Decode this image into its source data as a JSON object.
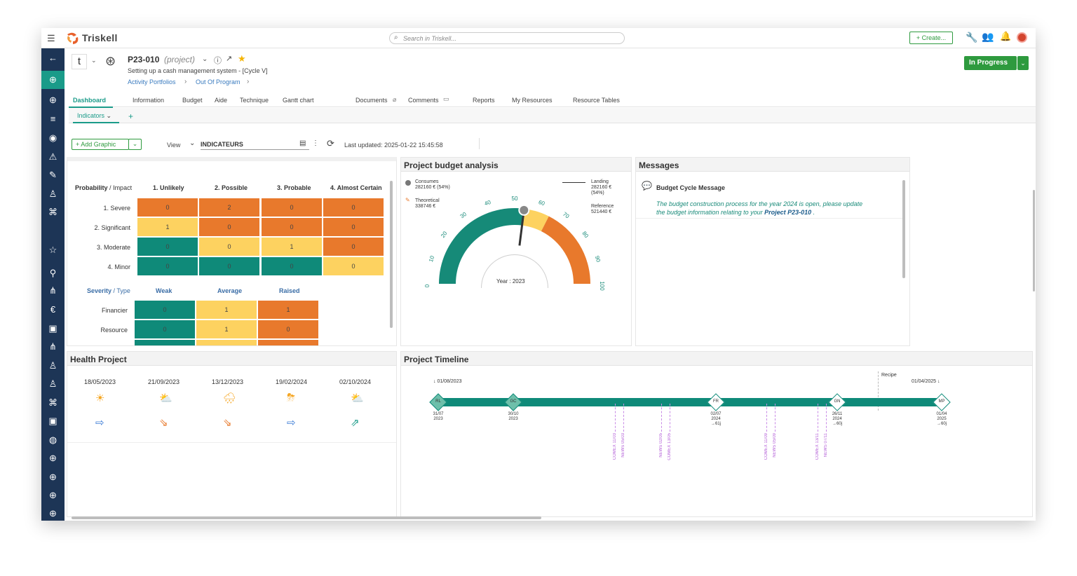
{
  "app": {
    "name": "Triskell",
    "search_placeholder": "Search in Triskell...",
    "create_label": "+ Create..."
  },
  "project": {
    "letter": "t",
    "code": "P23-010",
    "type": "(project)",
    "subtitle": "Setting up a cash management system - [Cycle V]",
    "breadcrumb": [
      "Activity Portfolios",
      "Out Of Program"
    ],
    "status": "In Progress"
  },
  "tabs": [
    "Dashboard",
    "Information",
    "Budget",
    "Aide",
    "Technique",
    "Gantt chart",
    "Documents",
    "Comments",
    "Reports",
    "My Resources",
    "Resource Tables"
  ],
  "subtab": "Indicators",
  "toolbar": {
    "add_graphic": "Add Graphic",
    "view_label": "View",
    "view_value": "INDICATEURS",
    "last_updated": "Last updated: 2025-01-22 15:45:58"
  },
  "risk": {
    "corner_a": "Probability",
    "corner_sep": "/",
    "corner_b": "Impact",
    "columns": [
      "1. Unlikely",
      "2. Possible",
      "3. Probable",
      "4. Almost Certain"
    ],
    "rows": [
      {
        "label": "1. Severe",
        "cells": [
          {
            "v": "0",
            "c": "#e8792c"
          },
          {
            "v": "2",
            "c": "#e8792c"
          },
          {
            "v": "0",
            "c": "#e8792c"
          },
          {
            "v": "0",
            "c": "#e8792c"
          }
        ]
      },
      {
        "label": "2. Significant",
        "cells": [
          {
            "v": "1",
            "c": "#fdd260"
          },
          {
            "v": "0",
            "c": "#e8792c"
          },
          {
            "v": "0",
            "c": "#e8792c"
          },
          {
            "v": "0",
            "c": "#e8792c"
          }
        ]
      },
      {
        "label": "3. Moderate",
        "cells": [
          {
            "v": "0",
            "c": "#0f8a79"
          },
          {
            "v": "0",
            "c": "#fdd260"
          },
          {
            "v": "1",
            "c": "#fdd260"
          },
          {
            "v": "0",
            "c": "#e8792c"
          }
        ]
      },
      {
        "label": "4. Minor",
        "cells": [
          {
            "v": "0",
            "c": "#0f8a79"
          },
          {
            "v": "0",
            "c": "#0f8a79"
          },
          {
            "v": "0",
            "c": "#0f8a79"
          },
          {
            "v": "0",
            "c": "#fdd260"
          }
        ]
      }
    ],
    "corner2_a": "Severity",
    "corner2_b": "Type",
    "columns2": [
      "Weak",
      "Average",
      "Raised"
    ],
    "rows2": [
      {
        "label": "Financier",
        "cells": [
          {
            "v": "0",
            "c": "#0f8a79"
          },
          {
            "v": "1",
            "c": "#fdd260"
          },
          {
            "v": "1",
            "c": "#e8792c"
          }
        ]
      },
      {
        "label": "Resource",
        "cells": [
          {
            "v": "0",
            "c": "#0f8a79"
          },
          {
            "v": "1",
            "c": "#fdd260"
          },
          {
            "v": "0",
            "c": "#e8792c"
          }
        ]
      }
    ]
  },
  "budget": {
    "title": "Project budget analysis",
    "consumes_label": "Consumes",
    "consumes_value": "282160 € (54%)",
    "theoretical_label": "Theoretical",
    "theoretical_value": "338746 €",
    "landing_label": "Landing",
    "landing_value": "282160 €",
    "landing_pct": "(54%)",
    "reference_label": "Reference",
    "reference_value": "521440 €",
    "year_label": "Year : 2023",
    "ticks": [
      "0",
      "10",
      "20",
      "30",
      "40",
      "50",
      "60",
      "70",
      "80",
      "90",
      "100"
    ],
    "needle_pct": 54,
    "colors": {
      "green": "#168a78",
      "yellow": "#fdd260",
      "orange": "#e8792c"
    }
  },
  "messages": {
    "title": "Messages",
    "item_title": "Budget Cycle Message",
    "body": "The budget construction process for the year 2024 is open, please update the budget information relating to your",
    "project_ref": "Project P23-010",
    "trail": "."
  },
  "health": {
    "title": "Health Project",
    "dates": [
      "18/05/2023",
      "21/09/2023",
      "13/12/2023",
      "19/02/2024",
      "02/10/2024"
    ],
    "weather": [
      "sun-icon",
      "sun-cloud-icon",
      "cloud-rain-icon",
      "cloud-storm-icon",
      "sun-cloud-icon"
    ],
    "trend": [
      "arrow-right-icon",
      "arrow-down-right-icon",
      "arrow-down-right-icon",
      "arrow-right-icon",
      "arrow-up-right-icon"
    ]
  },
  "timeline": {
    "title": "Project Timeline",
    "start": "↓ 01/08/2023",
    "end": "01/04/2025 ↓",
    "recipe": "Recipe",
    "milestones": [
      {
        "code": "RL",
        "l1": "31/07",
        "l2": "2023",
        "l3": ""
      },
      {
        "code": "GC",
        "l1": "30/10",
        "l2": "2023",
        "l3": ""
      },
      {
        "code": "FR",
        "l1": "02/07",
        "l2": "2024",
        "l3": "→61j"
      },
      {
        "code": "GN",
        "l1": "26/11",
        "l2": "2024",
        "l3": "→60j"
      },
      {
        "code": "MP",
        "l1": "01/04",
        "l2": "2025",
        "l3": "→60j"
      }
    ],
    "markers": [
      [
        "COMEX 11/03",
        "NEWS 05/03"
      ],
      [
        "NEWS 02/05",
        "COMEX 13/05"
      ],
      [
        "COMEX 11/09",
        "NEWS 05/09"
      ],
      [
        "COMEX 13/11",
        "NEWS 07/11"
      ]
    ]
  }
}
